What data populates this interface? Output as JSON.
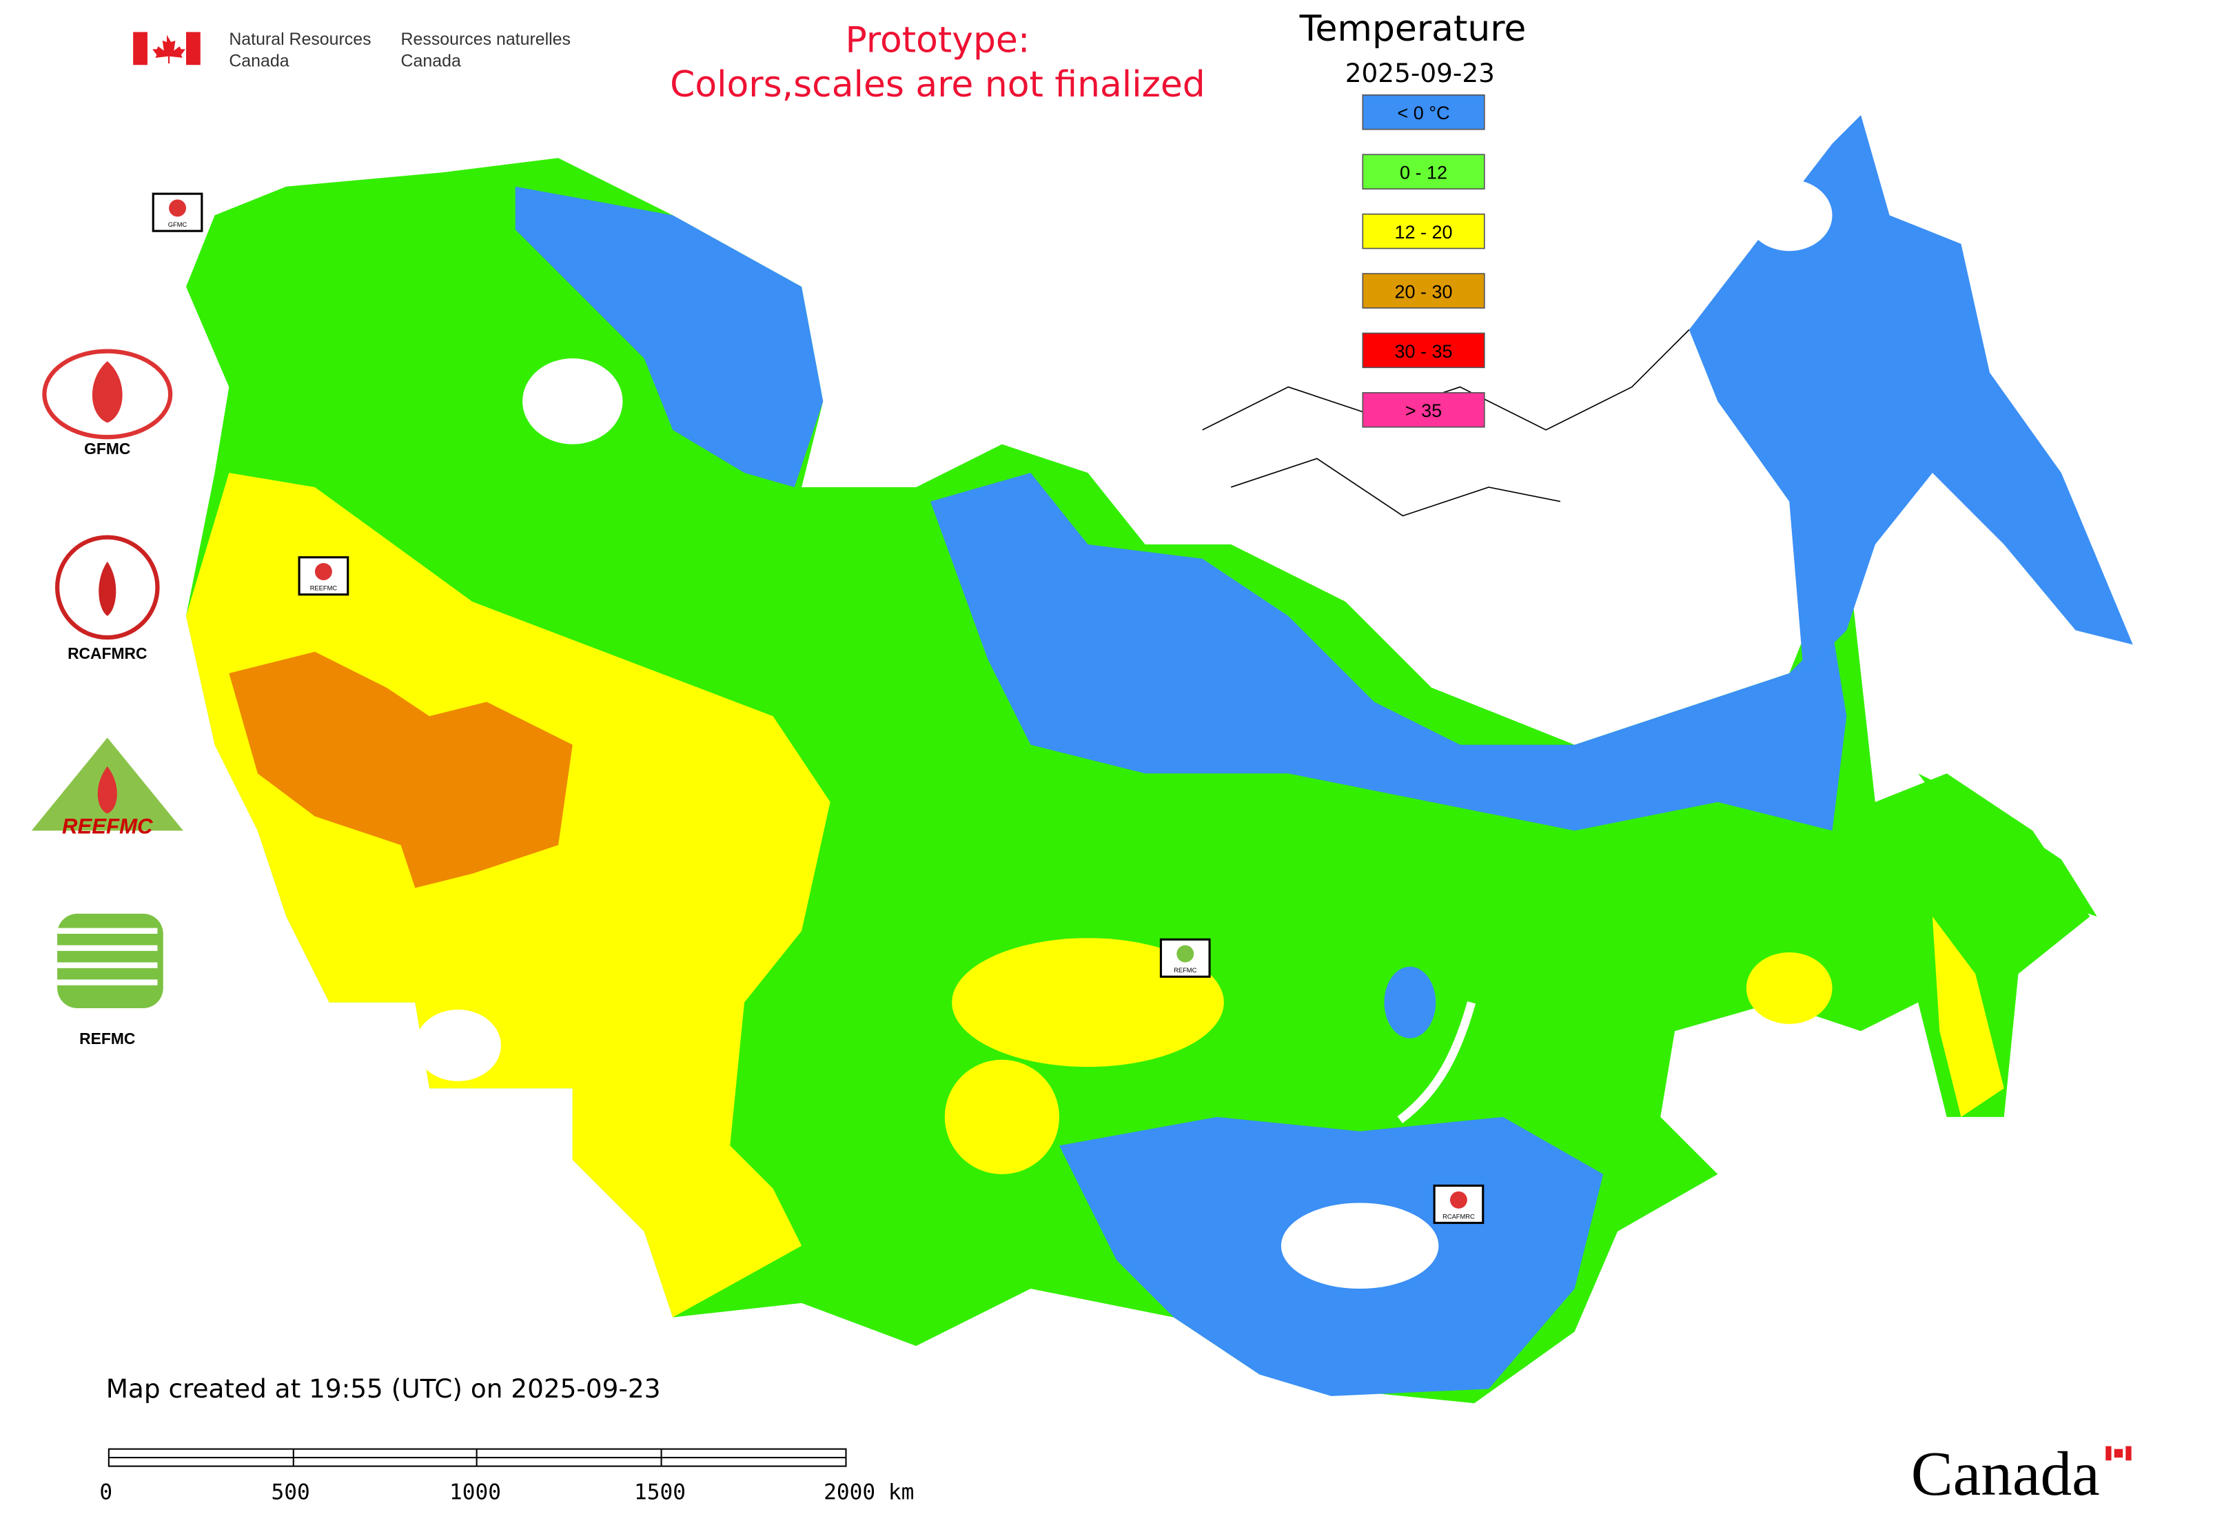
{
  "header": {
    "agency_en_line1": "Natural Resources",
    "agency_en_line2": "Canada",
    "agency_fr_line1": "Ressources naturelles",
    "agency_fr_line2": "Canada"
  },
  "notice": {
    "line1": "Prototype:",
    "line2": "Colors,scales are not finalized"
  },
  "legend": {
    "title": "Temperature",
    "date": "2025-09-23",
    "items": [
      {
        "label": "< 0 °C",
        "color": "#3b8ff5"
      },
      {
        "label": "0 - 12",
        "color": "#66ff33"
      },
      {
        "label": "12 - 20",
        "color": "#ffff00"
      },
      {
        "label": "20 - 30",
        "color": "#dd9900"
      },
      {
        "label": "30 - 35",
        "color": "#ff0000"
      },
      {
        "label": "> 35",
        "color": "#ff3399"
      }
    ]
  },
  "logos": [
    {
      "label": "GFMC"
    },
    {
      "label": "RCAFMRC"
    },
    {
      "label": "REEFMC"
    },
    {
      "label": "REFMC"
    }
  ],
  "map_markers": [
    {
      "label": "GFMC"
    },
    {
      "label": "REEFMC"
    },
    {
      "label": "REFMC"
    },
    {
      "label": "RCAFMRC"
    }
  ],
  "footer": {
    "created": "Map created at 19:55 (UTC) on 2025-09-23",
    "scale_labels": [
      "0",
      "500",
      "1000",
      "1500",
      "2000 km"
    ],
    "wordmark": "Canada"
  }
}
